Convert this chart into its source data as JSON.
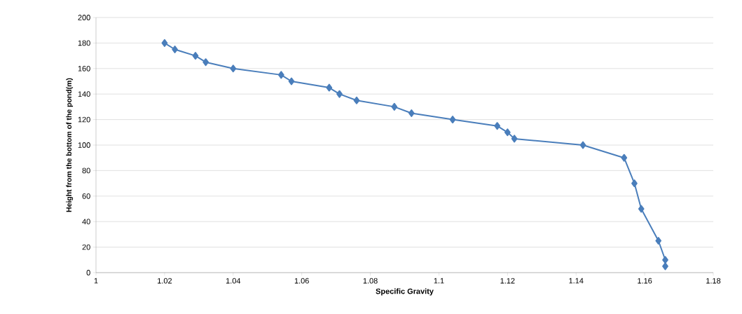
{
  "chart_data": {
    "type": "line",
    "xlabel": "Specific Gravity",
    "ylabel": "Height from the bottom of the pond(m)",
    "x": [
      1.02,
      1.023,
      1.029,
      1.032,
      1.04,
      1.054,
      1.057,
      1.068,
      1.071,
      1.076,
      1.087,
      1.092,
      1.104,
      1.117,
      1.12,
      1.122,
      1.142,
      1.154,
      1.157,
      1.159,
      1.164,
      1.166,
      1.166
    ],
    "values": [
      180,
      175,
      170,
      165,
      160,
      155,
      150,
      145,
      140,
      135,
      130,
      125,
      120,
      115,
      110,
      105,
      100,
      90,
      70,
      50,
      25,
      10,
      5
    ],
    "color": "#4a7ebb",
    "marker": "diamond",
    "line_style": "solid",
    "grid": "y",
    "xlim": [
      1,
      1.18
    ],
    "xticks": [
      1,
      1.02,
      1.04,
      1.06,
      1.08,
      1.1,
      1.12,
      1.14,
      1.16,
      1.18
    ],
    "ylim": [
      0,
      200
    ],
    "yticks": [
      0,
      20,
      40,
      60,
      80,
      100,
      120,
      140,
      160,
      180,
      200
    ]
  }
}
